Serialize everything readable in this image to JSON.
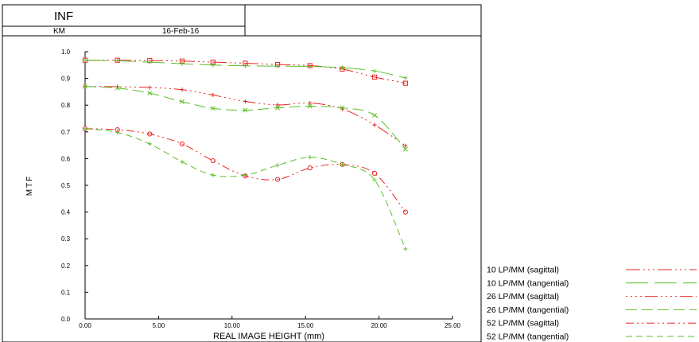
{
  "header": {
    "condition": "INF",
    "author": "KM",
    "date": "16-Feb-16"
  },
  "colors": {
    "sagittal": "#e8231f",
    "tangential": "#5bbf2a",
    "axis": "#000000"
  },
  "chart_data": {
    "type": "line",
    "title": "",
    "xlabel": "REAL IMAGE HEIGHT (mm)",
    "ylabel": "MTF",
    "xlim": [
      0,
      25
    ],
    "ylim": [
      0,
      1
    ],
    "x_ticks": [
      "0.00",
      "5.00",
      "10.00",
      "15.00",
      "20.00",
      "25.00"
    ],
    "y_ticks": [
      "0.0",
      "0.1",
      "0.2",
      "0.3",
      "0.4",
      "0.5",
      "0.6",
      "0.7",
      "0.8",
      "0.9",
      "1.0"
    ],
    "grid": false,
    "legend_position": "bottom-right",
    "series": [
      {
        "name": "10 LP/MM (sagittal)",
        "orientation": "sagittal",
        "dash": "18 4 2 4 2 4 2 4",
        "marker": "square",
        "x": [
          0,
          2.2,
          4.4,
          6.6,
          8.7,
          10.9,
          13.1,
          15.3,
          17.5,
          19.7,
          21.8
        ],
        "y": [
          0.968,
          0.968,
          0.967,
          0.965,
          0.961,
          0.957,
          0.952,
          0.948,
          0.935,
          0.905,
          0.882
        ]
      },
      {
        "name": "10 LP/MM (tangential)",
        "orientation": "tangential",
        "dash": "28 8",
        "marker": "plus",
        "x": [
          0,
          2.2,
          4.4,
          6.6,
          8.7,
          10.9,
          13.1,
          15.3,
          17.5,
          19.7,
          21.8
        ],
        "y": [
          0.968,
          0.966,
          0.961,
          0.955,
          0.95,
          0.947,
          0.946,
          0.945,
          0.94,
          0.928,
          0.902
        ]
      },
      {
        "name": "26 LP/MM (sagittal)",
        "orientation": "sagittal",
        "dash": "2 4 2 4 2 4 2 4 16 4",
        "marker": "plus",
        "x": [
          0,
          2.2,
          4.4,
          6.6,
          8.7,
          10.9,
          13.1,
          15.3,
          17.5,
          19.7,
          21.8
        ],
        "y": [
          0.87,
          0.869,
          0.866,
          0.858,
          0.838,
          0.814,
          0.801,
          0.808,
          0.786,
          0.726,
          0.648
        ]
      },
      {
        "name": "26 LP/MM (tangential)",
        "orientation": "tangential",
        "dash": "14 6",
        "marker": "cross",
        "x": [
          0,
          2.2,
          4.4,
          6.6,
          8.7,
          10.9,
          13.1,
          15.3,
          17.5,
          19.7,
          21.8
        ],
        "y": [
          0.87,
          0.864,
          0.845,
          0.813,
          0.788,
          0.781,
          0.79,
          0.796,
          0.79,
          0.762,
          0.635
        ]
      },
      {
        "name": "52 LP/MM (sagittal)",
        "orientation": "sagittal",
        "dash": "10 4 2 4 2 4",
        "marker": "circle",
        "x": [
          0,
          2.2,
          4.4,
          6.6,
          8.7,
          10.9,
          13.1,
          15.3,
          17.5,
          19.7,
          21.8
        ],
        "y": [
          0.712,
          0.708,
          0.692,
          0.655,
          0.592,
          0.535,
          0.522,
          0.565,
          0.578,
          0.545,
          0.4
        ]
      },
      {
        "name": "52 LP/MM (tangential)",
        "orientation": "tangential",
        "dash": "8 5",
        "marker": "plus",
        "x": [
          0,
          2.2,
          4.4,
          6.6,
          8.7,
          10.9,
          13.1,
          15.3,
          17.5,
          19.7,
          21.8
        ],
        "y": [
          0.712,
          0.698,
          0.655,
          0.588,
          0.538,
          0.538,
          0.575,
          0.605,
          0.578,
          0.52,
          0.262
        ]
      }
    ]
  }
}
